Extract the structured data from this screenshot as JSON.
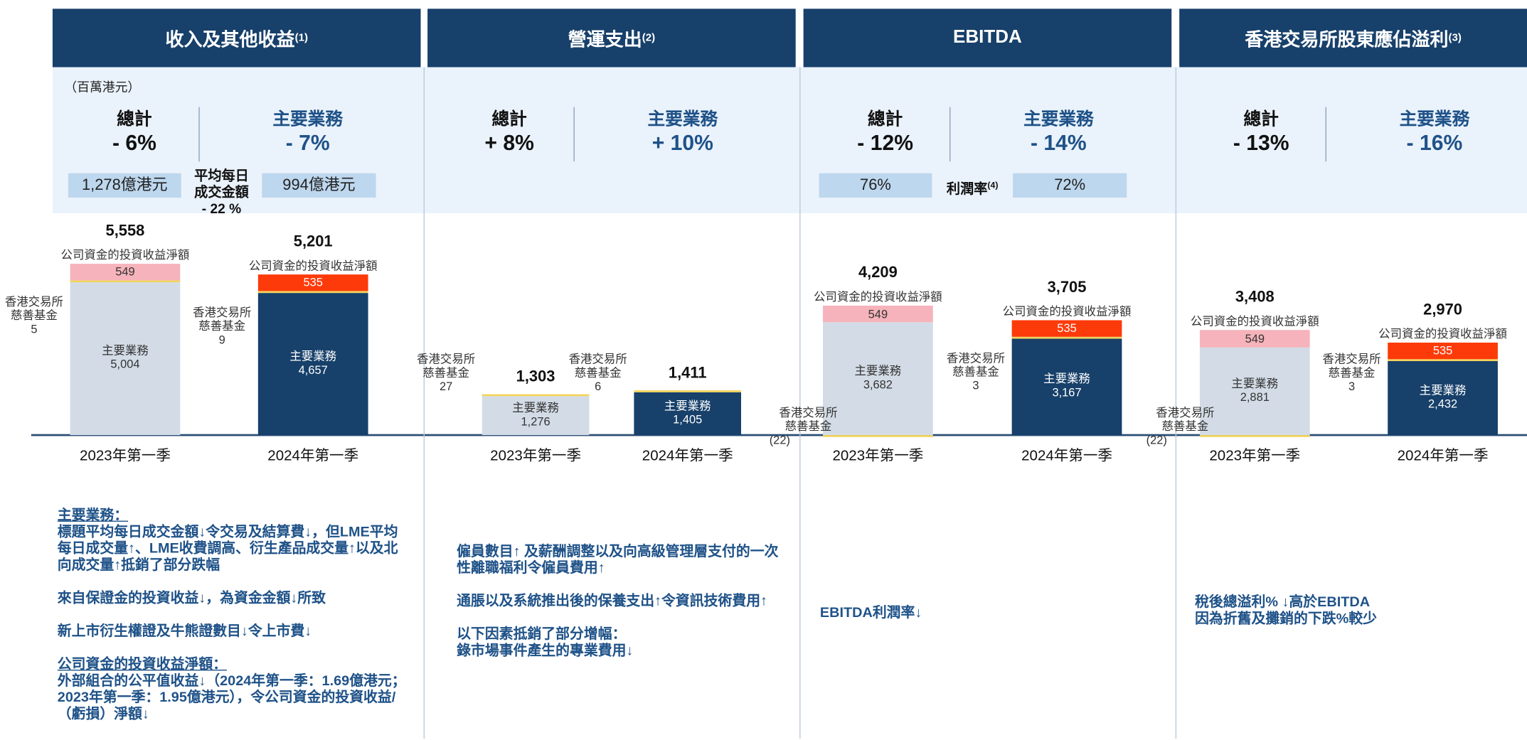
{
  "unit_note": "（百萬港元）",
  "panels": [
    {
      "title": "收入及其他收益",
      "footnote": "(1)",
      "total_label": "總計",
      "total_change": "- 6%",
      "core_label": "主要業務",
      "core_change": "- 7%",
      "metric": {
        "left": "1,278億港元",
        "middle": "平均每日\n成交金額",
        "middle_change": "- 22 %",
        "right": "994億港元"
      },
      "bars": [
        {
          "period": "2023年第一季",
          "total": 5558,
          "total_label": "5,558",
          "segments": [
            {
              "name": "主要業務",
              "value": 5004,
              "value_label": "5,004",
              "color": "#d3dce6"
            },
            {
              "name": "香港交易所\n慈善基金",
              "value": 5,
              "color": "#f2d35b"
            },
            {
              "name": "公司資金的投資收益淨額",
              "value": 549,
              "color": "#f6b3bb"
            }
          ]
        },
        {
          "period": "2024年第一季",
          "total": 5201,
          "total_label": "5,201",
          "segments": [
            {
              "name": "主要業務",
              "value": 4657,
              "value_label": "4,657",
              "color": "#17406a"
            },
            {
              "name": "香港交易所\n慈善基金",
              "value": 9,
              "color": "#f2d35b"
            },
            {
              "name": "公司資金的投資收益淨額",
              "value": 535,
              "color": "#fd3a0a"
            }
          ]
        }
      ],
      "notes": [
        [
          {
            "text": "主要業務：",
            "underline": true
          },
          {
            "text": "標題平均每日成交金額↓令交易及結算費↓，但LME平均每日成交量↑、LME收費調高、衍生產品成交量↑以及北向成交量↑抵銷了部分跌幅"
          }
        ],
        [
          {
            "text": "來自保證金的投資收益↓，為資金金額↓所致"
          }
        ],
        [
          {
            "text": "新上市衍生權證及牛熊證數目↓令上市費↓"
          }
        ],
        [
          {
            "text": "公司資金的投資收益淨額：",
            "underline": true
          },
          {
            "text": "外部組合的公平值收益↓（2024年第一季：1.69億港元；2023年第一季：1.95億港元），令公司資金的投資收益/（虧損）淨額↓"
          }
        ]
      ]
    },
    {
      "title": "營運支出",
      "footnote": "(2)",
      "total_label": "總計",
      "total_change": "+ 8%",
      "core_label": "主要業務",
      "core_change": "+ 10%",
      "bars": [
        {
          "period": "2023年第一季",
          "total": 1303,
          "total_label": "1,303",
          "segments": [
            {
              "name": "主要業務",
              "value": 1276,
              "value_label": "1,276",
              "color": "#d3dce6"
            },
            {
              "name": "香港交易所\n慈善基金",
              "value": 27,
              "color": "#f2d35b"
            }
          ]
        },
        {
          "period": "2024年第一季",
          "total": 1411,
          "total_label": "1,411",
          "segments": [
            {
              "name": "主要業務",
              "value": 1405,
              "value_label": "1,405",
              "color": "#17406a"
            },
            {
              "name": "香港交易所\n慈善基金",
              "value": 6,
              "color": "#f2d35b"
            }
          ]
        }
      ],
      "notes": [
        [
          {
            "text": "僱員數目↑ 及薪酬調整以及向高級管理層支付的一次性離職福利令僱員費用↑"
          }
        ],
        [
          {
            "text": "通脹以及系統推出後的保養支出↑令資訊技術費用↑"
          }
        ],
        [
          {
            "text": "以下因素抵銷了部分增幅："
          },
          {
            "text": "錄市場事件產生的專業費用↓"
          }
        ]
      ]
    },
    {
      "title": "EBITDA",
      "total_label": "總計",
      "total_change": "- 12%",
      "core_label": "主要業務",
      "core_change": "- 14%",
      "metric": {
        "left": "76%",
        "middle": "利潤率",
        "middle_footnote": "(4)",
        "right": "72%"
      },
      "bars": [
        {
          "period": "2023年第一季",
          "total": 4209,
          "total_label": "4,209",
          "segments": [
            {
              "name": "主要業務",
              "value": 3682,
              "value_label": "3,682",
              "color": "#d3dce6"
            },
            {
              "name": "香港交易所\n慈善基金",
              "value": -22,
              "value_label": "(22)",
              "color": "#f2d35b"
            },
            {
              "name": "公司資金的投資收益淨額",
              "value": 549,
              "color": "#f6b3bb"
            }
          ]
        },
        {
          "period": "2024年第一季",
          "total": 3705,
          "total_label": "3,705",
          "segments": [
            {
              "name": "主要業務",
              "value": 3167,
              "value_label": "3,167",
              "color": "#17406a"
            },
            {
              "name": "香港交易所\n慈善基金",
              "value": 3,
              "color": "#f2d35b"
            },
            {
              "name": "公司資金的投資收益淨額",
              "value": 535,
              "color": "#fd3a0a"
            }
          ]
        }
      ],
      "notes": [
        [
          {
            "text": "EBITDA利潤率↓"
          }
        ]
      ]
    },
    {
      "title": "香港交易所股東應佔溢利",
      "footnote": "(3)",
      "total_label": "總計",
      "total_change": "- 13%",
      "core_label": "主要業務",
      "core_change": "- 16%",
      "bars": [
        {
          "period": "2023年第一季",
          "total": 3408,
          "total_label": "3,408",
          "segments": [
            {
              "name": "主要業務",
              "value": 2881,
              "value_label": "2,881",
              "color": "#d3dce6"
            },
            {
              "name": "香港交易所\n慈善基金",
              "value": -22,
              "value_label": "(22)",
              "color": "#f2d35b"
            },
            {
              "name": "公司資金的投資收益淨額",
              "value": 549,
              "color": "#f6b3bb"
            }
          ]
        },
        {
          "period": "2024年第一季",
          "total": 2970,
          "total_label": "2,970",
          "segments": [
            {
              "name": "主要業務",
              "value": 2432,
              "value_label": "2,432",
              "color": "#17406a"
            },
            {
              "name": "香港交易所\n慈善基金",
              "value": 3,
              "color": "#f2d35b"
            },
            {
              "name": "公司資金的投資收益淨額",
              "value": 535,
              "color": "#fd3a0a"
            }
          ]
        }
      ],
      "notes": [
        [
          {
            "text": "稅後總溢利% ↓高於EBITDA"
          },
          {
            "text": "因為折舊及攤銷的下跌%較少"
          }
        ]
      ]
    }
  ]
}
